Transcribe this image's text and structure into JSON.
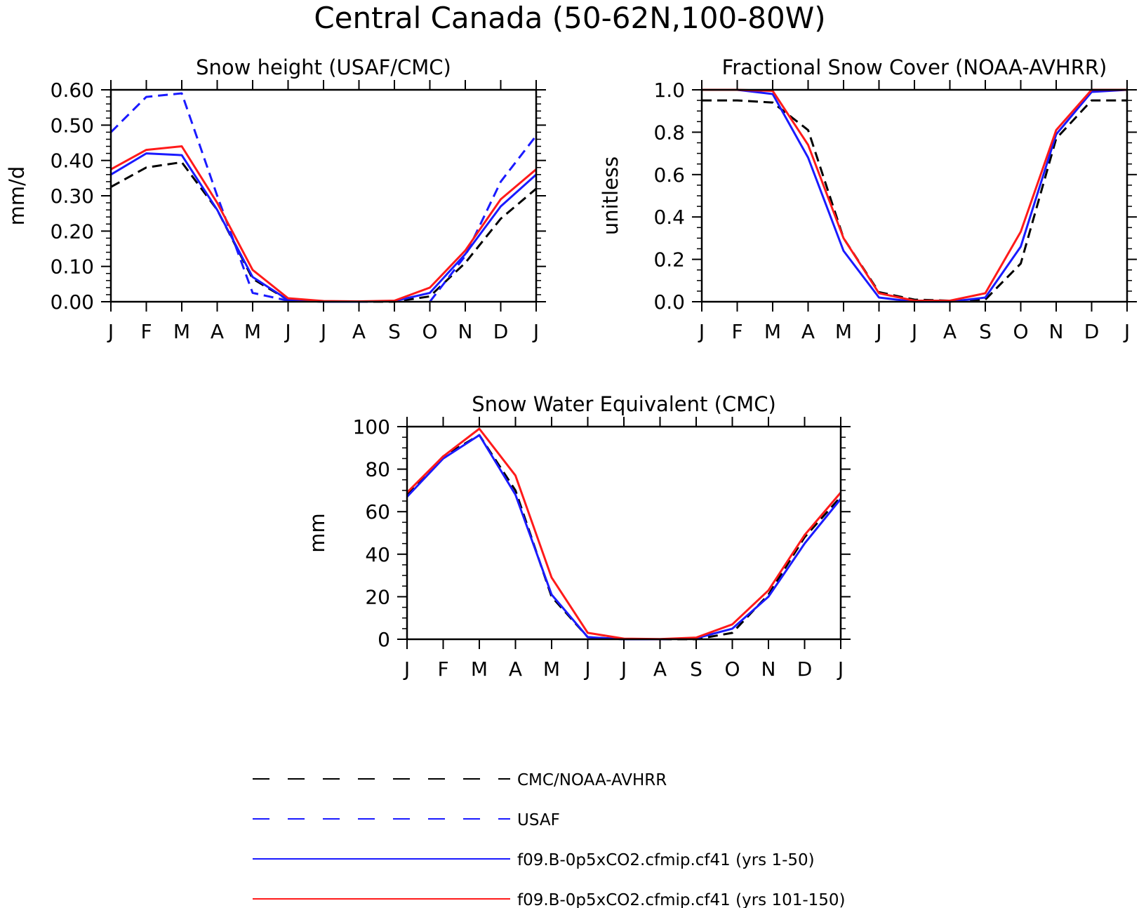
{
  "figure_title": "Central Canada (50-62N,100-80W)",
  "legend": [
    {
      "label": "CMC/NOAA-AVHRR",
      "color": "#000000",
      "dashed": true
    },
    {
      "label": "USAF",
      "color": "#1a1aff",
      "dashed": true
    },
    {
      "label": "f09.B-0p5xCO2.cfmip.cf41 (yrs 1-50)",
      "color": "#1a1aff",
      "dashed": false
    },
    {
      "label": "f09.B-0p5xCO2.cfmip.cf41 (yrs 101-150)",
      "color": "#ff1a1a",
      "dashed": false
    }
  ],
  "chart_data": [
    {
      "type": "line",
      "title": "Snow height (USAF/CMC)",
      "ylabel": "mm/d",
      "xlabel": "",
      "categories": [
        "J",
        "F",
        "M",
        "A",
        "M",
        "J",
        "J",
        "A",
        "S",
        "O",
        "N",
        "D",
        "J"
      ],
      "ylim": [
        0,
        0.6
      ],
      "yticks": [
        "0.00",
        "0.10",
        "0.20",
        "0.30",
        "0.40",
        "0.50",
        "0.60"
      ],
      "series": [
        {
          "name": "CMC/NOAA-AVHRR",
          "color": "#000000",
          "dashed": true,
          "values": [
            0.325,
            0.38,
            0.395,
            0.26,
            0.065,
            0.005,
            0.0,
            0.0,
            0.0,
            0.015,
            0.11,
            0.235,
            0.32
          ]
        },
        {
          "name": "USAF",
          "color": "#1a1aff",
          "dashed": true,
          "values": [
            0.48,
            0.58,
            0.59,
            0.3,
            0.025,
            0.003,
            null,
            null,
            null,
            0.0,
            0.13,
            0.34,
            0.47
          ]
        },
        {
          "name": "f09.B-0p5xCO2.cfmip.cf41 (yrs 1-50)",
          "color": "#1a1aff",
          "dashed": false,
          "values": [
            0.36,
            0.42,
            0.415,
            0.26,
            0.07,
            0.005,
            0.0,
            0.0,
            0.002,
            0.025,
            0.135,
            0.27,
            0.36
          ]
        },
        {
          "name": "f09.B-0p5xCO2.cfmip.cf41 (yrs 101-150)",
          "color": "#ff1a1a",
          "dashed": false,
          "values": [
            0.375,
            0.43,
            0.44,
            0.28,
            0.09,
            0.01,
            0.002,
            0.001,
            0.003,
            0.04,
            0.145,
            0.29,
            0.375
          ]
        }
      ]
    },
    {
      "type": "line",
      "title": "Fractional Snow Cover (NOAA-AVHRR)",
      "ylabel": "unitless",
      "xlabel": "",
      "categories": [
        "J",
        "F",
        "M",
        "A",
        "M",
        "J",
        "J",
        "A",
        "S",
        "O",
        "N",
        "D",
        "J"
      ],
      "ylim": [
        0,
        1.0
      ],
      "yticks": [
        "0.0",
        "0.2",
        "0.4",
        "0.6",
        "0.8",
        "1.0"
      ],
      "series": [
        {
          "name": "CMC/NOAA-AVHRR",
          "color": "#000000",
          "dashed": true,
          "values": [
            0.95,
            0.95,
            0.94,
            0.81,
            0.3,
            0.045,
            0.01,
            0.005,
            0.01,
            0.18,
            0.77,
            0.95,
            0.95
          ]
        },
        {
          "name": "f09.B-0p5xCO2.cfmip.cf41 (yrs 1-50)",
          "color": "#1a1aff",
          "dashed": false,
          "values": [
            1.0,
            1.0,
            0.98,
            0.68,
            0.24,
            0.02,
            0.0,
            0.0,
            0.02,
            0.26,
            0.79,
            0.99,
            1.0
          ]
        },
        {
          "name": "f09.B-0p5xCO2.cfmip.cf41 (yrs 101-150)",
          "color": "#ff1a1a",
          "dashed": false,
          "values": [
            1.0,
            1.0,
            0.995,
            0.74,
            0.3,
            0.04,
            0.005,
            0.005,
            0.04,
            0.33,
            0.81,
            1.0,
            1.0
          ]
        }
      ]
    },
    {
      "type": "line",
      "title": "Snow Water Equivalent (CMC)",
      "ylabel": "mm",
      "xlabel": "",
      "categories": [
        "J",
        "F",
        "M",
        "A",
        "M",
        "J",
        "J",
        "A",
        "S",
        "O",
        "N",
        "D",
        "J"
      ],
      "ylim": [
        0,
        100
      ],
      "yticks": [
        "0",
        "20",
        "40",
        "60",
        "80",
        "100"
      ],
      "series": [
        {
          "name": "CMC/NOAA-AVHRR",
          "color": "#000000",
          "dashed": true,
          "values": [
            68,
            86,
            96,
            70,
            20,
            1,
            0,
            0,
            0,
            3,
            21,
            48,
            67
          ]
        },
        {
          "name": "f09.B-0p5xCO2.cfmip.cf41 (yrs 1-50)",
          "color": "#1a1aff",
          "dashed": false,
          "values": [
            67,
            85,
            96,
            68,
            21,
            1,
            0,
            0,
            0.5,
            5,
            20,
            45,
            66
          ]
        },
        {
          "name": "f09.B-0p5xCO2.cfmip.cf41 (yrs 101-150)",
          "color": "#ff1a1a",
          "dashed": false,
          "values": [
            69,
            86,
            99,
            77,
            29,
            3,
            0.3,
            0.1,
            0.8,
            7,
            23,
            49,
            69
          ]
        }
      ]
    }
  ]
}
